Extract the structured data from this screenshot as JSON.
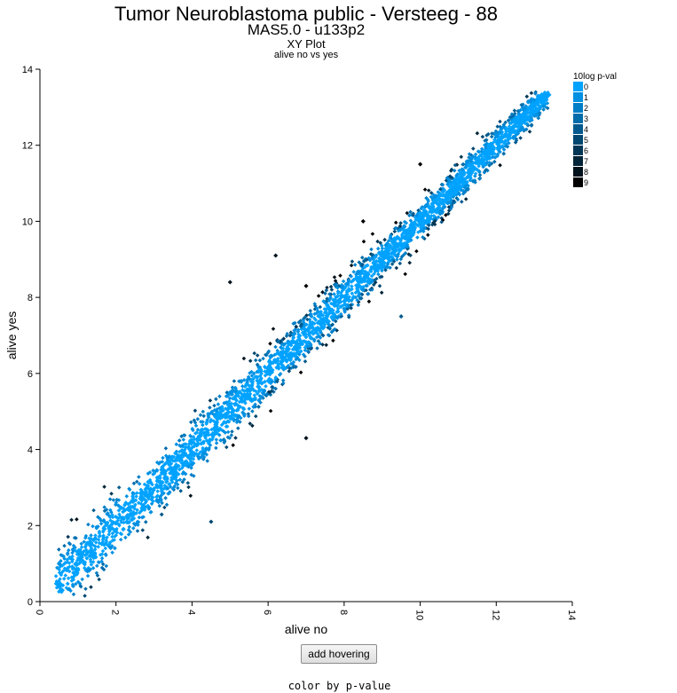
{
  "header": {
    "title": "Tumor Neuroblastoma public - Versteeg - 88",
    "subtitle": "MAS5.0 - u133p2",
    "plot_type": "XY Plot",
    "comparison": "alive no vs yes"
  },
  "controls": {
    "hover_button": "add hovering",
    "color_mode": "color by p-value"
  },
  "legend": {
    "title": "10log p-val",
    "items": [
      {
        "label": "0",
        "color": "#00a2ff"
      },
      {
        "label": "1",
        "color": "#0090e2"
      },
      {
        "label": "2",
        "color": "#007ec6"
      },
      {
        "label": "3",
        "color": "#006caa"
      },
      {
        "label": "4",
        "color": "#005a8d"
      },
      {
        "label": "5",
        "color": "#004871"
      },
      {
        "label": "6",
        "color": "#003655"
      },
      {
        "label": "7",
        "color": "#002438"
      },
      {
        "label": "8",
        "color": "#00121c"
      },
      {
        "label": "9",
        "color": "#000000"
      }
    ]
  },
  "chart_data": {
    "type": "scatter",
    "title": "Tumor Neuroblastoma public - Versteeg - 88",
    "subtitle": "MAS5.0 - u133p2",
    "xlabel": "alive no",
    "ylabel": "alive yes",
    "xlim": [
      0,
      14
    ],
    "ylim": [
      0,
      14
    ],
    "xticks": [
      "0",
      "2",
      "4",
      "6",
      "8",
      "10",
      "12",
      "14"
    ],
    "yticks": [
      "0",
      "2",
      "4",
      "6",
      "8",
      "10",
      "12",
      "14"
    ],
    "grid": false,
    "legend_position": "top-right",
    "color_by": "10log p-val",
    "points_description_range": {
      "x_min": 0.4,
      "x_max": 13.4,
      "trend": "y approximately equals x"
    },
    "outliers": [
      {
        "x": 7.0,
        "y": 8.3,
        "pval_class": 9
      },
      {
        "x": 6.2,
        "y": 9.1,
        "pval_class": 8
      },
      {
        "x": 5.0,
        "y": 8.4,
        "pval_class": 8
      },
      {
        "x": 7.0,
        "y": 4.3,
        "pval_class": 8
      },
      {
        "x": 4.5,
        "y": 2.1,
        "pval_class": 5
      },
      {
        "x": 10.0,
        "y": 11.5,
        "pval_class": 9
      },
      {
        "x": 8.5,
        "y": 10.0,
        "pval_class": 9
      },
      {
        "x": 9.5,
        "y": 7.5,
        "pval_class": 4
      }
    ]
  }
}
